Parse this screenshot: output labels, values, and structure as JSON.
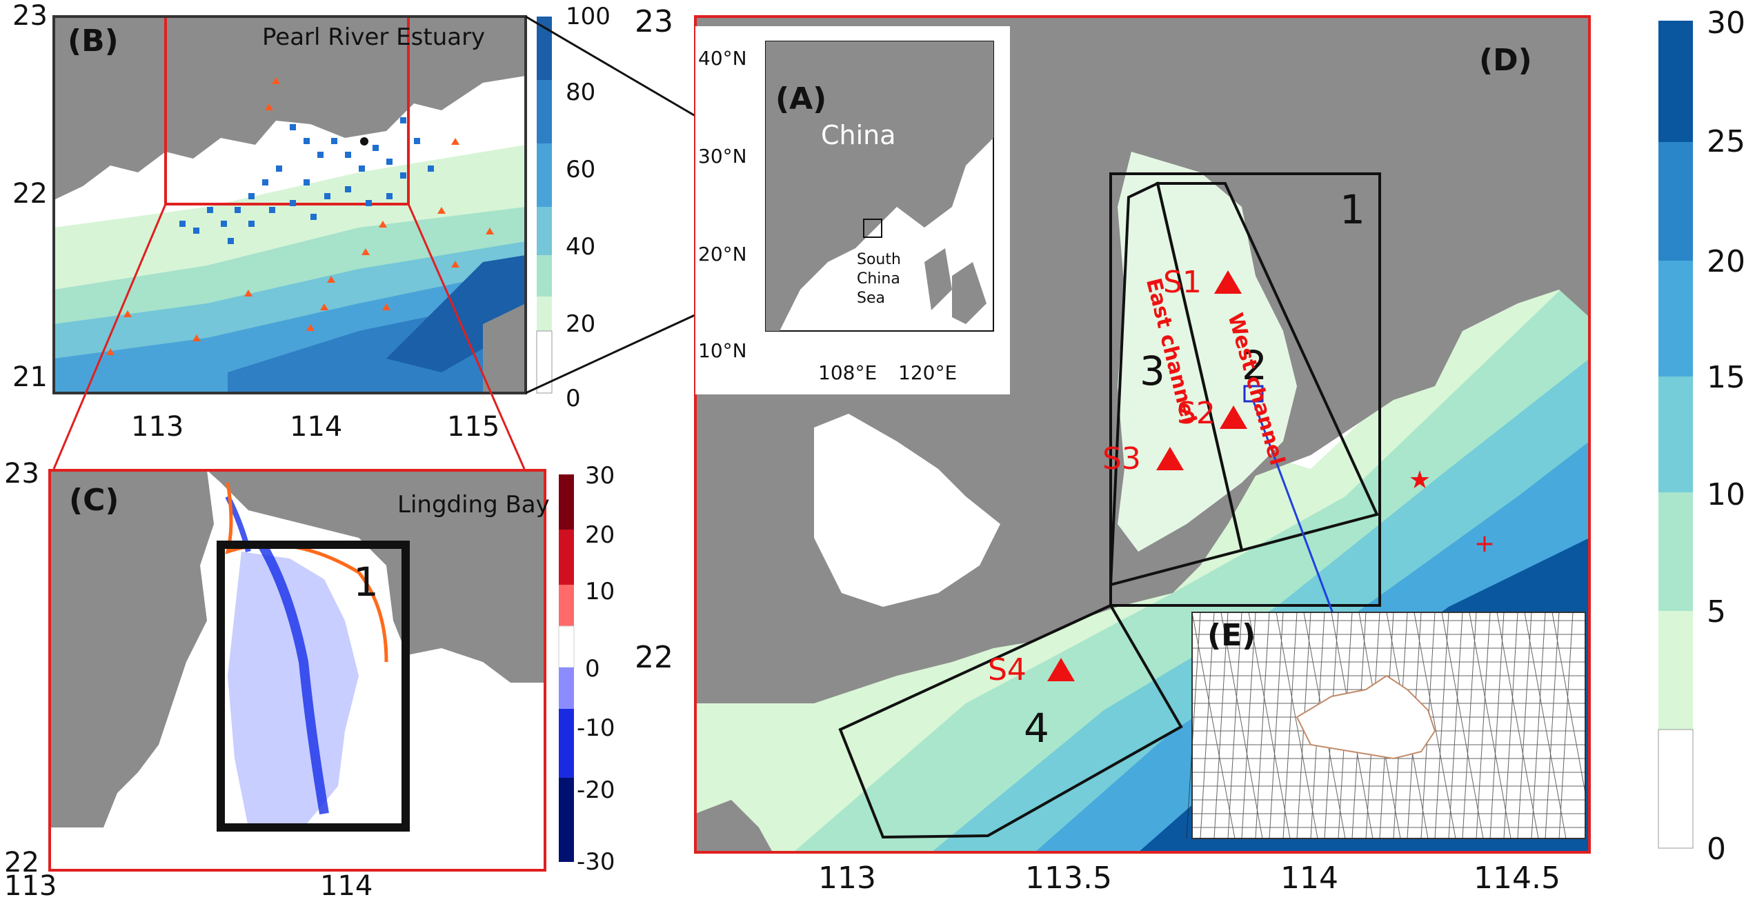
{
  "panel_b": {
    "letter": "(B)",
    "title": "Pearl River Estuary",
    "y_ticks": [
      "23",
      "22",
      "21"
    ],
    "x_ticks": [
      "113",
      "114",
      "115"
    ],
    "colorbar": {
      "ticks": [
        "100",
        "80",
        "60",
        "40",
        "20",
        "0"
      ],
      "colors": [
        "#1a5fa8",
        "#2f7fc4",
        "#4aa3d8",
        "#74c6d8",
        "#a7e2cb",
        "#d7f5d6",
        "#ffffff"
      ]
    }
  },
  "panel_a": {
    "letter": "(A)",
    "country": "China",
    "sea": [
      "South",
      "China",
      "Sea"
    ],
    "y_ticks": [
      "40°N",
      "30°N",
      "20°N",
      "10°N"
    ],
    "x_ticks": [
      "108°E",
      "120°E"
    ]
  },
  "panel_c": {
    "letter": "(C)",
    "title": "Lingding Bay",
    "region": "1",
    "y_ticks": [
      "23",
      "22"
    ],
    "x_ticks": [
      "113",
      "114"
    ],
    "colorbar": {
      "ticks": [
        "30",
        "20",
        "10",
        "0",
        "-10",
        "-20",
        "-30"
      ],
      "colors": [
        "#7a0010",
        "#e01020",
        "#ff8080",
        "#ffffff",
        "#8080ff",
        "#1020e0",
        "#001070"
      ]
    }
  },
  "panel_d": {
    "letter": "(D)",
    "y_ticks": [
      "23",
      "22"
    ],
    "x_ticks": [
      "113",
      "113.5",
      "114",
      "114.5"
    ],
    "regions": [
      "1",
      "2",
      "3",
      "4"
    ],
    "stations": [
      "S1",
      "S2",
      "S3",
      "S4"
    ],
    "channels": [
      "East channel",
      "West channel"
    ],
    "colorbar": {
      "ticks": [
        "30",
        "25",
        "20",
        "15",
        "10",
        "5",
        "0"
      ],
      "colors": [
        "#0a57a0",
        "#2a86c8",
        "#48a9dc",
        "#74cdd8",
        "#a9e6cc",
        "#d9f6d6",
        "#ffffff"
      ]
    }
  },
  "panel_e": {
    "letter": "(E)"
  },
  "colors": {
    "land": "#8c8c8c",
    "frame_red": "#e02020",
    "marker_red": "#e11",
    "marker_blue": "#1f6fd0"
  }
}
